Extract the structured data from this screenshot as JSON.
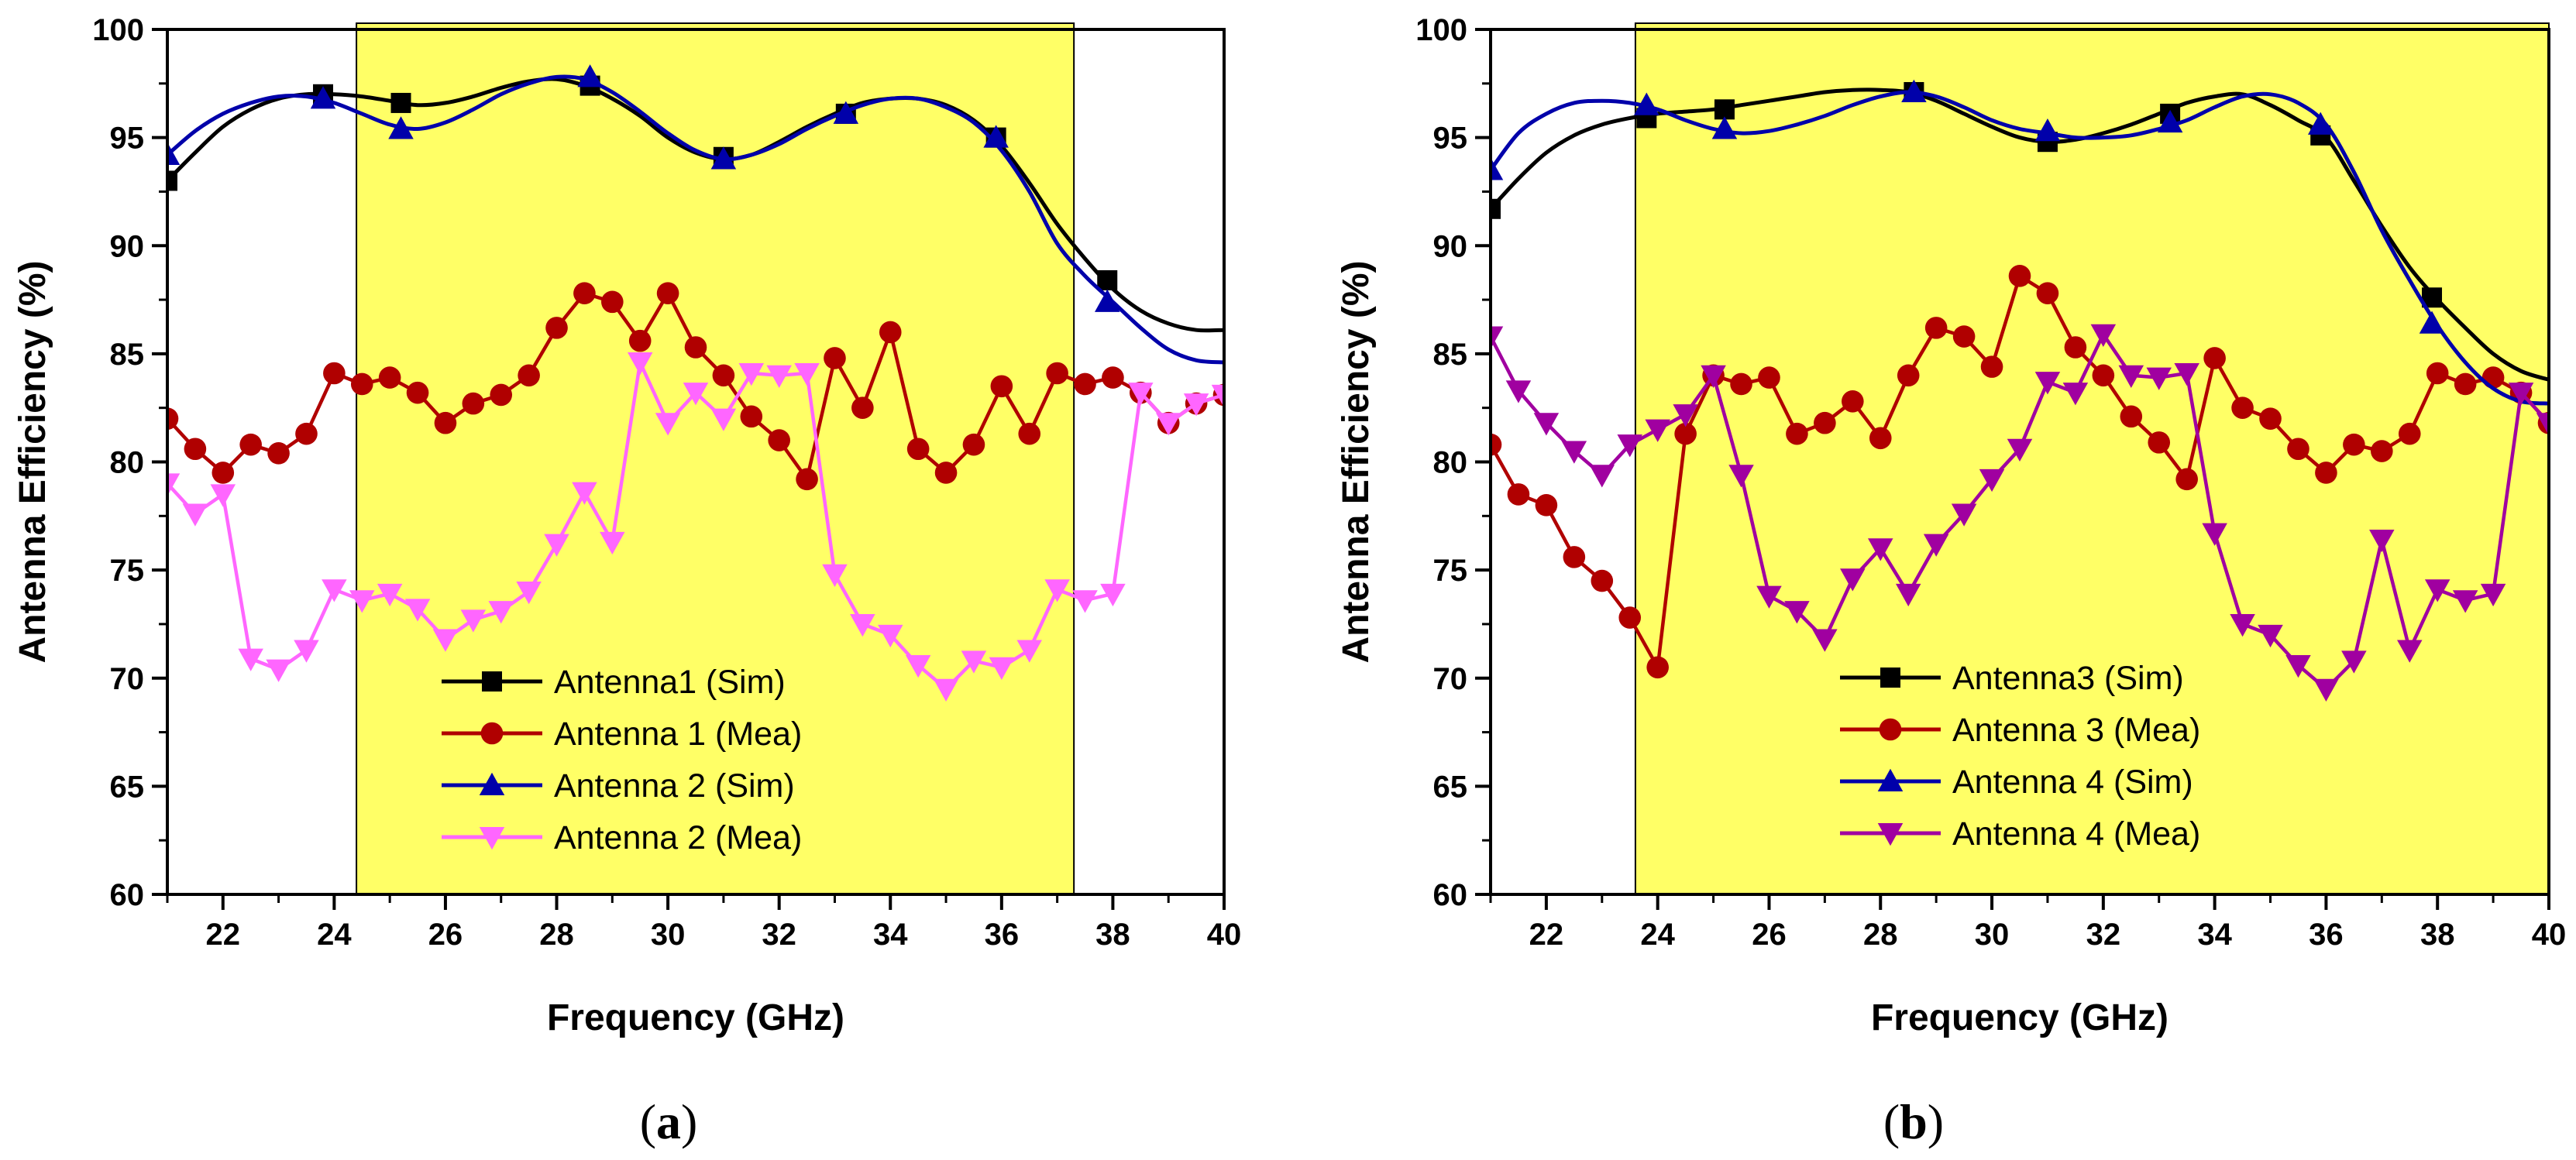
{
  "chart_data": [
    {
      "panel_label": "a",
      "type": "line",
      "xlabel": "Frequency (GHz)",
      "ylabel": "Antenna Efficiency (%)",
      "xlim": [
        21,
        40
      ],
      "ylim": [
        60,
        100
      ],
      "xticks": [
        22,
        24,
        26,
        28,
        30,
        32,
        34,
        36,
        38,
        40
      ],
      "yticks": [
        60,
        65,
        70,
        75,
        80,
        85,
        90,
        95,
        100
      ],
      "highlight_band": [
        24.4,
        37.3
      ],
      "highlight_color": "#ffff66",
      "legend_position": "bottom-center",
      "series": [
        {
          "name": "Antenna1 (Sim)",
          "color": "#000000",
          "marker": "square",
          "smooth": true,
          "x": [
            21.0,
            21.5,
            22.0,
            22.5,
            23.0,
            23.5,
            24.0,
            24.5,
            25.0,
            25.5,
            26.0,
            26.5,
            27.0,
            27.5,
            28.0,
            28.5,
            29.0,
            29.5,
            30.0,
            30.5,
            31.0,
            31.5,
            32.0,
            32.5,
            33.0,
            33.5,
            34.0,
            34.5,
            35.0,
            35.5,
            36.0,
            36.5,
            37.0,
            37.5,
            38.0,
            38.5,
            39.0,
            39.5,
            40.0
          ],
          "y": [
            93.0,
            94.3,
            95.5,
            96.3,
            96.8,
            97.0,
            97.0,
            96.9,
            96.7,
            96.5,
            96.6,
            96.9,
            97.3,
            97.6,
            97.7,
            97.4,
            96.8,
            96.0,
            95.0,
            94.3,
            94.0,
            94.2,
            94.8,
            95.5,
            96.1,
            96.6,
            96.8,
            96.8,
            96.5,
            95.8,
            94.6,
            92.9,
            91.0,
            89.4,
            88.0,
            87.0,
            86.4,
            86.1,
            86.1
          ],
          "markers_x": [
            21.0,
            23.8,
            25.2,
            28.6,
            31.0,
            33.2,
            35.9,
            37.9
          ],
          "markers_y": [
            93.0,
            97.0,
            96.6,
            97.4,
            94.1,
            96.1,
            95.0,
            88.4
          ]
        },
        {
          "name": "Antenna 1 (Mea)",
          "color": "#b00000",
          "marker": "circle",
          "smooth": false,
          "x": [
            21.0,
            21.5,
            22.0,
            22.5,
            23.0,
            23.5,
            24.0,
            24.5,
            25.0,
            25.5,
            26.0,
            26.5,
            27.0,
            27.5,
            28.0,
            28.5,
            29.0,
            29.5,
            30.0,
            30.5,
            31.0,
            31.5,
            32.0,
            32.5,
            33.0,
            33.5,
            34.0,
            34.5,
            35.0,
            35.5,
            36.0,
            36.5,
            37.0,
            37.5,
            38.0,
            38.5,
            39.0,
            39.5,
            40.0
          ],
          "y": [
            82.0,
            80.6,
            79.5,
            80.8,
            80.4,
            81.3,
            84.1,
            83.6,
            83.9,
            83.2,
            81.8,
            82.7,
            83.1,
            84.0,
            86.2,
            87.8,
            87.4,
            85.6,
            87.8,
            85.3,
            84.0,
            82.1,
            81.0,
            79.2,
            84.8,
            82.5,
            86.0,
            80.6,
            79.5,
            80.8,
            83.5,
            81.3,
            84.1,
            83.6,
            83.9,
            83.2,
            81.8,
            82.7,
            83.1
          ]
        },
        {
          "name": "Antenna 2 (Sim)",
          "color": "#0000aa",
          "marker": "triangle-up",
          "smooth": true,
          "x": [
            21.0,
            21.5,
            22.0,
            22.5,
            23.0,
            23.5,
            24.0,
            24.5,
            25.0,
            25.5,
            26.0,
            26.5,
            27.0,
            27.5,
            28.0,
            28.5,
            29.0,
            29.5,
            30.0,
            30.5,
            31.0,
            31.5,
            32.0,
            32.5,
            33.0,
            33.5,
            34.0,
            34.5,
            35.0,
            35.5,
            36.0,
            36.5,
            37.0,
            37.5,
            38.0,
            38.5,
            39.0,
            39.5,
            40.0
          ],
          "y": [
            94.2,
            95.3,
            96.1,
            96.6,
            96.9,
            96.9,
            96.6,
            96.1,
            95.6,
            95.4,
            95.7,
            96.3,
            97.0,
            97.5,
            97.8,
            97.7,
            97.1,
            96.2,
            95.2,
            94.4,
            94.0,
            94.2,
            94.7,
            95.4,
            96.0,
            96.5,
            96.8,
            96.8,
            96.4,
            95.7,
            94.4,
            92.5,
            90.1,
            88.6,
            87.4,
            86.2,
            85.2,
            84.7,
            84.6
          ],
          "markers_x": [
            21.0,
            23.8,
            25.2,
            28.6,
            31.0,
            33.2,
            35.9,
            37.9
          ],
          "markers_y": [
            94.2,
            96.8,
            95.4,
            97.8,
            94.0,
            96.1,
            95.0,
            87.4
          ]
        },
        {
          "name": "Antenna 2 (Mea)",
          "color": "#ff66ff",
          "marker": "triangle-down",
          "smooth": false,
          "x": [
            21.0,
            21.5,
            22.0,
            22.5,
            23.0,
            23.5,
            24.0,
            24.5,
            25.0,
            25.5,
            26.0,
            26.5,
            27.0,
            27.5,
            28.0,
            28.5,
            29.0,
            29.5,
            30.0,
            30.5,
            31.0,
            31.5,
            32.0,
            32.5,
            33.0,
            33.5,
            34.0,
            34.5,
            35.0,
            35.5,
            36.0,
            36.5,
            37.0,
            37.5,
            38.0,
            38.5,
            39.0,
            39.5,
            40.0
          ],
          "y": [
            79.0,
            77.6,
            78.5,
            70.9,
            70.4,
            71.3,
            74.1,
            73.6,
            73.9,
            73.2,
            71.8,
            72.7,
            73.1,
            74.0,
            76.2,
            78.6,
            76.3,
            84.6,
            81.8,
            83.2,
            82.0,
            84.1,
            84.0,
            84.1,
            74.8,
            72.5,
            72.0,
            70.6,
            69.5,
            70.8,
            70.5,
            71.3,
            74.1,
            73.6,
            73.9,
            83.2,
            81.8,
            82.7,
            83.1
          ]
        }
      ]
    },
    {
      "panel_label": "b",
      "type": "line",
      "xlabel": "Frequency (GHz)",
      "ylabel": "Antenna Efficiency (%)",
      "xlim": [
        21,
        40
      ],
      "ylim": [
        60,
        100
      ],
      "xticks": [
        22,
        24,
        26,
        28,
        30,
        32,
        34,
        36,
        38,
        40
      ],
      "yticks": [
        60,
        65,
        70,
        75,
        80,
        85,
        90,
        95,
        100
      ],
      "highlight_band": [
        23.6,
        40.0
      ],
      "highlight_color": "#ffff66",
      "legend_position": "bottom-center",
      "series": [
        {
          "name": "Antenna3 (Sim)",
          "color": "#000000",
          "marker": "square",
          "smooth": true,
          "x": [
            21.0,
            21.5,
            22.0,
            22.5,
            23.0,
            23.5,
            24.0,
            24.5,
            25.0,
            25.5,
            26.0,
            26.5,
            27.0,
            27.5,
            28.0,
            28.5,
            29.0,
            29.5,
            30.0,
            30.5,
            31.0,
            31.5,
            32.0,
            32.5,
            33.0,
            33.5,
            34.0,
            34.5,
            35.0,
            35.5,
            36.0,
            36.5,
            37.0,
            37.5,
            38.0,
            38.5,
            39.0,
            39.5,
            40.0
          ],
          "y": [
            91.7,
            93.1,
            94.3,
            95.1,
            95.6,
            95.9,
            96.1,
            96.2,
            96.3,
            96.5,
            96.7,
            96.9,
            97.1,
            97.2,
            97.2,
            97.1,
            96.7,
            96.1,
            95.5,
            95.0,
            94.8,
            94.9,
            95.2,
            95.6,
            96.1,
            96.6,
            96.9,
            97.0,
            96.5,
            95.8,
            95.0,
            93.0,
            90.9,
            89.0,
            87.5,
            86.2,
            85.0,
            84.2,
            83.8
          ],
          "markers_x": [
            21.0,
            23.8,
            25.2,
            28.6,
            31.0,
            33.2,
            35.9,
            37.9
          ],
          "markers_y": [
            91.7,
            95.9,
            96.3,
            97.1,
            94.8,
            96.1,
            95.1,
            87.6
          ]
        },
        {
          "name": "Antenna 3 (Mea)",
          "color": "#b00000",
          "marker": "circle",
          "smooth": false,
          "x": [
            21.0,
            21.5,
            22.0,
            22.5,
            23.0,
            23.5,
            24.0,
            24.5,
            25.0,
            25.5,
            26.0,
            26.5,
            27.0,
            27.5,
            28.0,
            28.5,
            29.0,
            29.5,
            30.0,
            30.5,
            31.0,
            31.5,
            32.0,
            32.5,
            33.0,
            33.5,
            34.0,
            34.5,
            35.0,
            35.5,
            36.0,
            36.5,
            37.0,
            37.5,
            38.0,
            38.5,
            39.0,
            39.5,
            40.0
          ],
          "y": [
            80.8,
            78.5,
            78.0,
            75.6,
            74.5,
            72.8,
            70.5,
            81.3,
            84.0,
            83.6,
            83.9,
            81.3,
            81.8,
            82.8,
            81.1,
            84.0,
            86.2,
            85.8,
            84.4,
            88.6,
            87.8,
            85.3,
            84.0,
            82.1,
            80.9,
            79.2,
            84.8,
            82.5,
            82.0,
            80.6,
            79.5,
            80.8,
            80.5,
            81.3,
            84.1,
            83.6,
            83.9,
            83.2,
            81.8
          ]
        },
        {
          "name": "Antenna 4 (Sim)",
          "color": "#0000aa",
          "marker": "triangle-up",
          "smooth": true,
          "x": [
            21.0,
            21.5,
            22.0,
            22.5,
            23.0,
            23.5,
            24.0,
            24.5,
            25.0,
            25.5,
            26.0,
            26.5,
            27.0,
            27.5,
            28.0,
            28.5,
            29.0,
            29.5,
            30.0,
            30.5,
            31.0,
            31.5,
            32.0,
            32.5,
            33.0,
            33.5,
            34.0,
            34.5,
            35.0,
            35.5,
            36.0,
            36.5,
            37.0,
            37.5,
            38.0,
            38.5,
            39.0,
            39.5,
            40.0
          ],
          "y": [
            93.5,
            95.2,
            96.1,
            96.6,
            96.7,
            96.6,
            96.3,
            95.8,
            95.4,
            95.2,
            95.3,
            95.6,
            96.0,
            96.5,
            96.9,
            97.1,
            96.9,
            96.4,
            95.8,
            95.4,
            95.2,
            95.0,
            95.0,
            95.1,
            95.4,
            95.8,
            96.4,
            96.9,
            97.0,
            96.6,
            95.6,
            93.4,
            90.7,
            88.4,
            86.3,
            84.6,
            83.4,
            82.8,
            82.7
          ],
          "markers_x": [
            21.0,
            23.8,
            25.2,
            28.6,
            31.0,
            33.2,
            35.9,
            37.9
          ],
          "markers_y": [
            93.5,
            96.5,
            95.4,
            97.1,
            95.3,
            95.7,
            95.6,
            86.4
          ]
        },
        {
          "name": "Antenna 4 (Mea)",
          "color": "#a000a0",
          "marker": "triangle-down",
          "smooth": false,
          "x": [
            21.0,
            21.5,
            22.0,
            22.5,
            23.0,
            23.5,
            24.0,
            24.5,
            25.0,
            25.5,
            26.0,
            26.5,
            27.0,
            27.5,
            28.0,
            28.5,
            29.0,
            29.5,
            30.0,
            30.5,
            31.0,
            31.5,
            32.0,
            32.5,
            33.0,
            33.5,
            34.0,
            34.5,
            35.0,
            35.5,
            36.0,
            36.5,
            37.0,
            37.5,
            38.0,
            38.5,
            39.0,
            39.5,
            40.0
          ],
          "y": [
            85.8,
            83.3,
            81.8,
            80.5,
            79.4,
            80.8,
            81.5,
            82.2,
            84.0,
            79.4,
            73.8,
            73.1,
            71.8,
            74.6,
            76.0,
            73.9,
            76.2,
            77.6,
            79.2,
            80.6,
            83.7,
            83.2,
            85.9,
            84.0,
            83.9,
            84.1,
            76.7,
            72.5,
            72.0,
            70.6,
            69.5,
            70.8,
            76.4,
            71.3,
            74.1,
            73.6,
            73.9,
            83.2,
            81.8
          ]
        }
      ]
    }
  ]
}
